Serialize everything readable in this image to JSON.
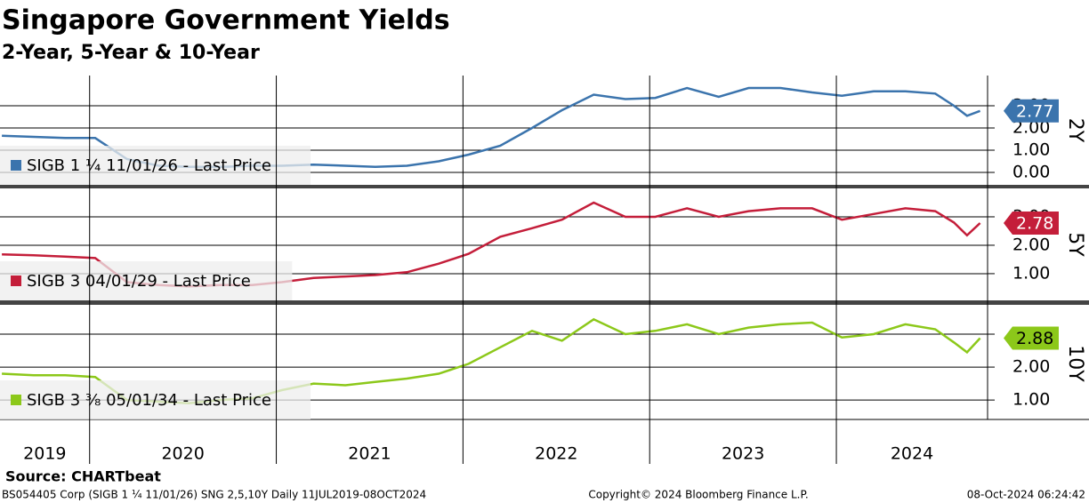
{
  "title": "Singapore Government Yields",
  "subtitle": "2-Year, 5-Year & 10-Year",
  "source": "Source: CHARTbeat",
  "footer": {
    "left": "BS054405 Corp (SIGB 1 ¼ 11/01/26) SNG 2,5,10Y Daily 11JUL2019-08OCT2024",
    "center": "Copyright© 2024 Bloomberg Finance L.P.",
    "right": "08-Oct-2024 06:24:42"
  },
  "chart_data": [
    {
      "type": "line",
      "y_label": "2Y",
      "x": [
        2019.53,
        2019.7,
        2019.87,
        2020.03,
        2020.2,
        2020.37,
        2020.53,
        2020.7,
        2020.87,
        2021.03,
        2021.2,
        2021.37,
        2021.53,
        2021.7,
        2021.87,
        2022.03,
        2022.2,
        2022.37,
        2022.53,
        2022.7,
        2022.87,
        2023.03,
        2023.2,
        2023.37,
        2023.53,
        2023.7,
        2023.87,
        2024.03,
        2024.2,
        2024.37,
        2024.53,
        2024.63,
        2024.7,
        2024.77
      ],
      "series": [
        {
          "name": "SIGB 1 ¼ 11/01/26 - Last Price",
          "color": "#3b74ad",
          "values": [
            1.65,
            1.6,
            1.55,
            1.55,
            0.6,
            0.3,
            0.25,
            0.25,
            0.3,
            0.3,
            0.35,
            0.3,
            0.25,
            0.3,
            0.5,
            0.8,
            1.2,
            2.0,
            2.8,
            3.5,
            3.3,
            3.35,
            3.8,
            3.4,
            3.8,
            3.8,
            3.6,
            3.45,
            3.65,
            3.65,
            3.55,
            3.0,
            2.55,
            2.77
          ]
        }
      ],
      "xlim": [
        2019.52,
        2024.81
      ],
      "ylim": [
        -0.56,
        4.36
      ],
      "yticks": [
        {
          "value": 0,
          "label": "0.00"
        },
        {
          "value": 1,
          "label": "1.00"
        },
        {
          "value": 2,
          "label": "2.00"
        },
        {
          "value": 3,
          "label": "3.00"
        }
      ],
      "grid": true
    },
    {
      "type": "line",
      "y_label": "5Y",
      "x": [
        2019.53,
        2019.7,
        2019.87,
        2020.03,
        2020.2,
        2020.37,
        2020.53,
        2020.7,
        2020.87,
        2021.03,
        2021.2,
        2021.37,
        2021.53,
        2021.7,
        2021.87,
        2022.03,
        2022.2,
        2022.37,
        2022.53,
        2022.7,
        2022.87,
        2023.03,
        2023.2,
        2023.37,
        2023.53,
        2023.7,
        2023.87,
        2024.03,
        2024.2,
        2024.37,
        2024.53,
        2024.63,
        2024.7,
        2024.77
      ],
      "series": [
        {
          "name": "SIGB 3 04/01/29 - Last Price",
          "color": "#c41e3a",
          "values": [
            1.68,
            1.65,
            1.6,
            1.55,
            0.7,
            0.6,
            0.55,
            0.6,
            0.6,
            0.7,
            0.85,
            0.9,
            0.95,
            1.05,
            1.35,
            1.7,
            2.3,
            2.6,
            2.9,
            3.5,
            3.0,
            3.0,
            3.3,
            3.0,
            3.2,
            3.3,
            3.3,
            2.9,
            3.1,
            3.3,
            3.2,
            2.8,
            2.35,
            2.78
          ]
        }
      ],
      "xlim": [
        2019.52,
        2024.81
      ],
      "ylim": [
        0.06,
        4.0
      ],
      "yticks": [
        {
          "value": 1,
          "label": "1.00"
        },
        {
          "value": 2,
          "label": "2.00"
        },
        {
          "value": 3,
          "label": "3.00"
        }
      ],
      "grid": true
    },
    {
      "type": "line",
      "y_label": "10Y",
      "x": [
        2019.53,
        2019.7,
        2019.87,
        2020.03,
        2020.2,
        2020.37,
        2020.53,
        2020.7,
        2020.87,
        2021.03,
        2021.2,
        2021.37,
        2021.53,
        2021.7,
        2021.87,
        2022.03,
        2022.2,
        2022.37,
        2022.53,
        2022.7,
        2022.87,
        2023.03,
        2023.2,
        2023.37,
        2023.53,
        2023.7,
        2023.87,
        2024.03,
        2024.2,
        2024.37,
        2024.53,
        2024.63,
        2024.7,
        2024.77
      ],
      "series": [
        {
          "name": "SIGB 3 ⅜ 05/01/34 - Last Price",
          "color": "#8cc81a",
          "values": [
            1.8,
            1.75,
            1.75,
            1.7,
            1.0,
            0.95,
            0.9,
            1.0,
            1.05,
            1.3,
            1.5,
            1.45,
            1.55,
            1.65,
            1.8,
            2.1,
            2.6,
            3.1,
            2.8,
            3.45,
            3.0,
            3.1,
            3.3,
            3.0,
            3.2,
            3.3,
            3.35,
            2.9,
            3.0,
            3.3,
            3.15,
            2.75,
            2.45,
            2.88
          ]
        }
      ],
      "xlim": [
        2019.52,
        2024.81
      ],
      "ylim": [
        0.41,
        3.81
      ],
      "xticks": [
        2019,
        2020,
        2021,
        2022,
        2023,
        2024
      ],
      "yticks": [
        {
          "value": 1,
          "label": "1.00"
        },
        {
          "value": 2,
          "label": "2.00"
        },
        {
          "value": 3,
          "label": "3.00"
        }
      ],
      "grid": true
    }
  ]
}
